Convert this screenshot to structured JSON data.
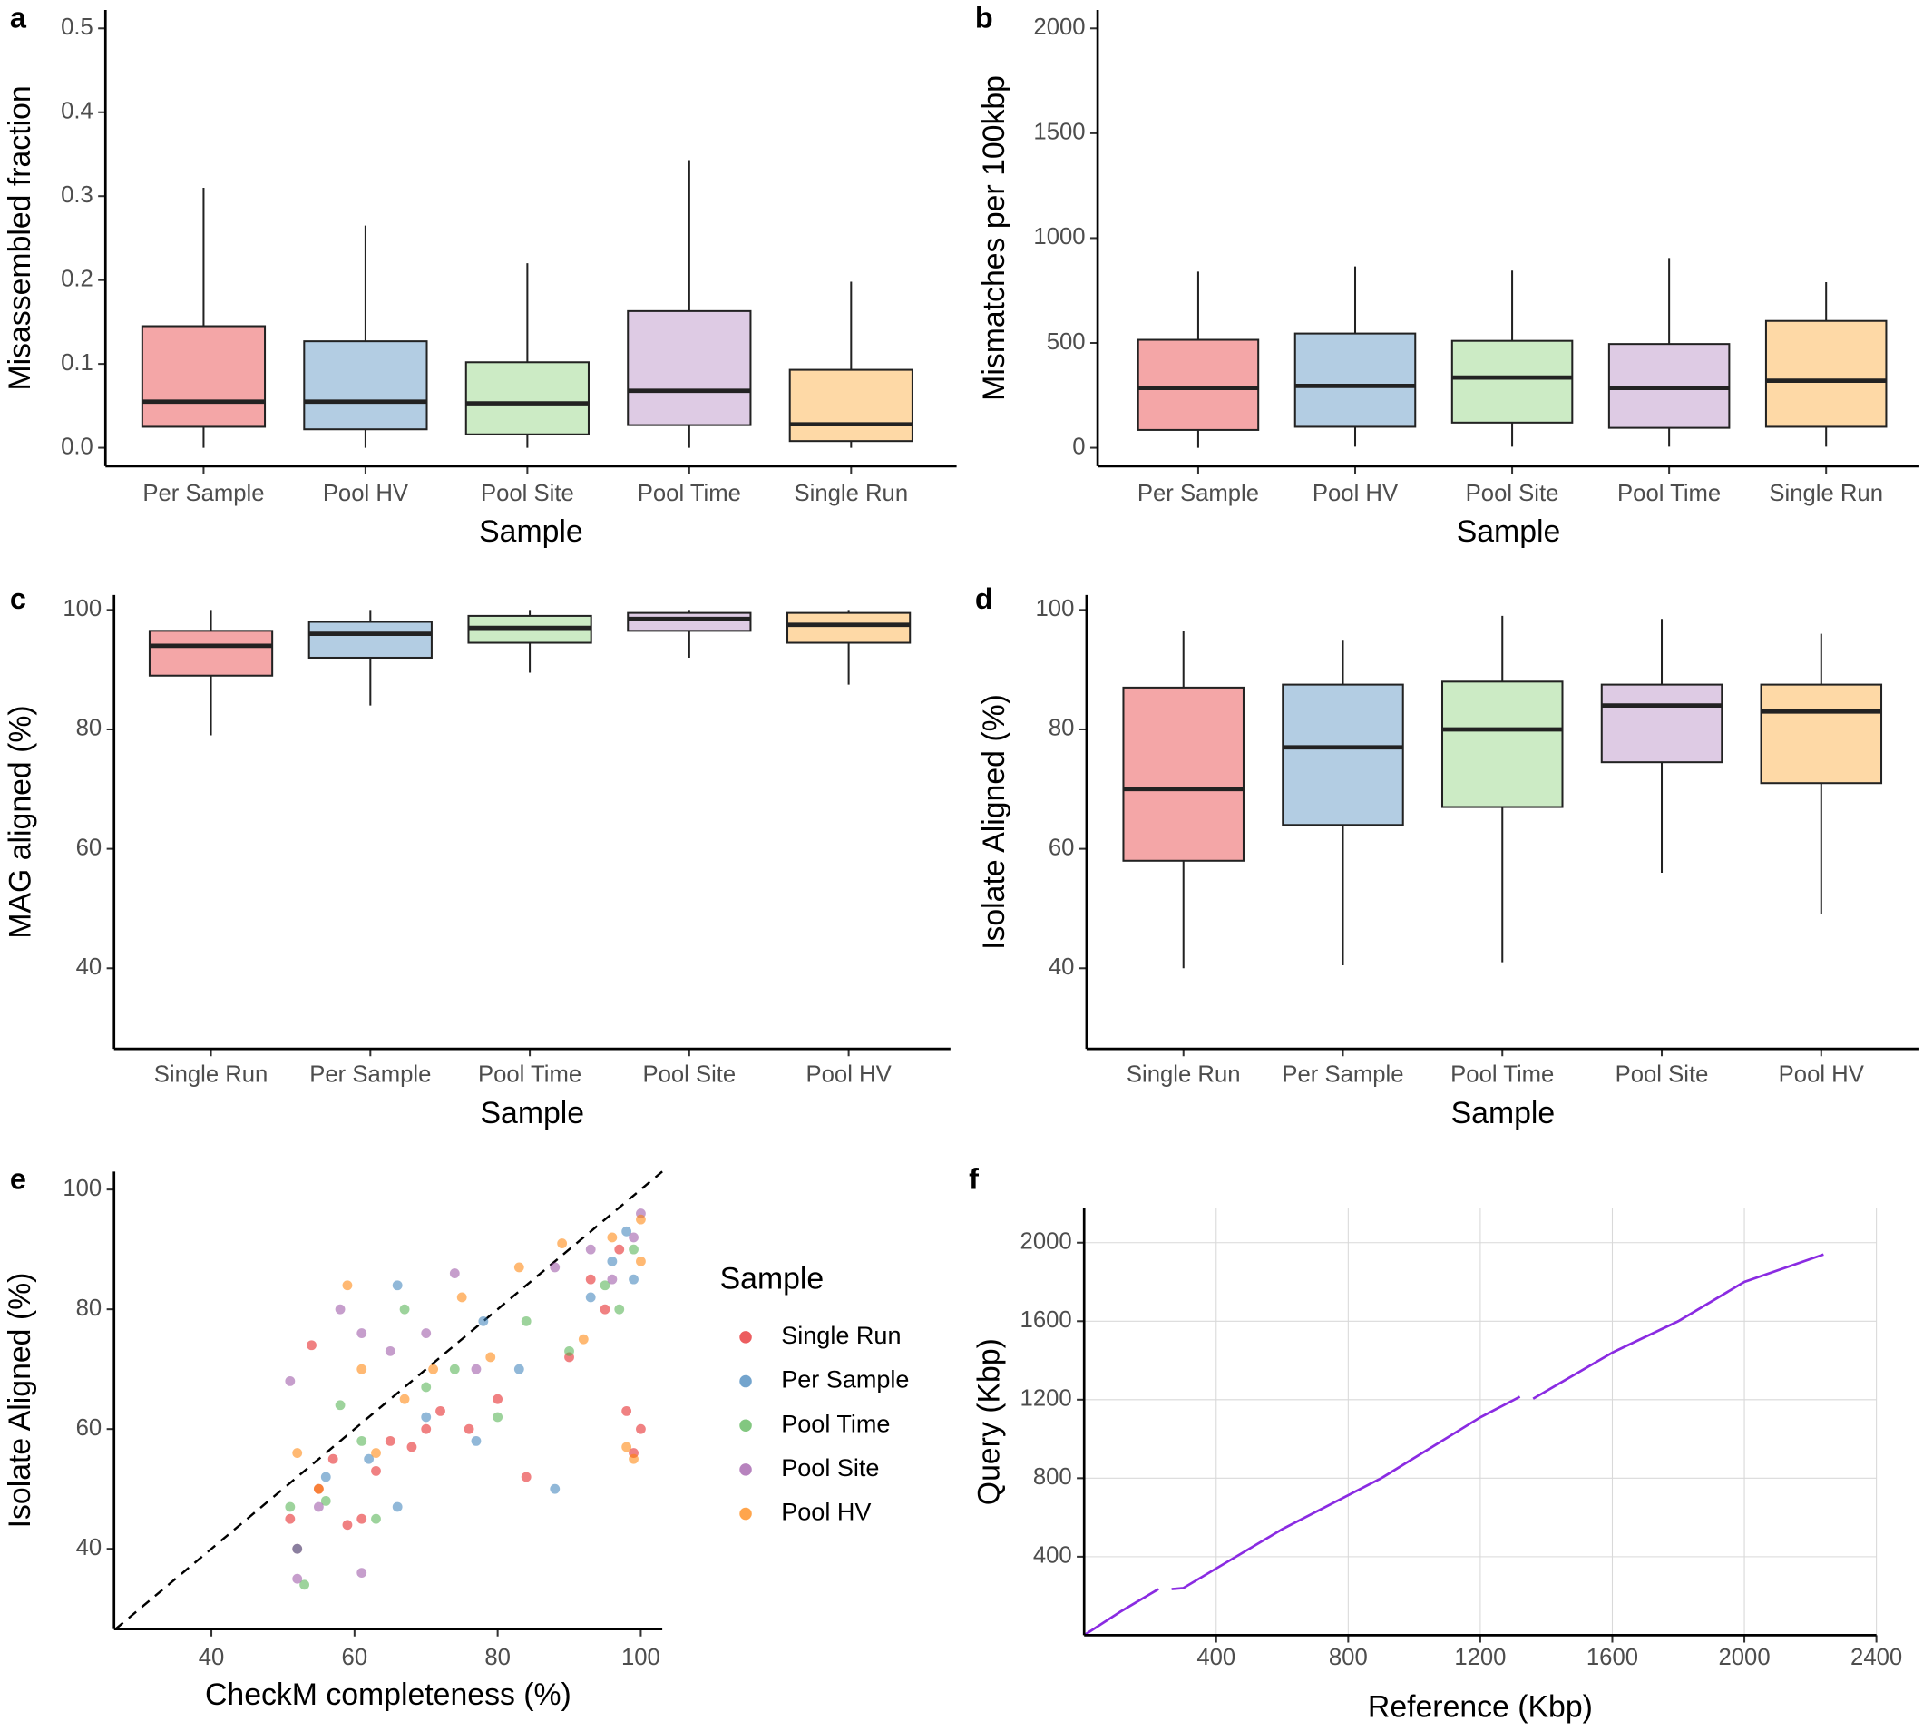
{
  "chart_data": [
    {
      "type": "box",
      "panel_label": "a",
      "xlabel": "Sample",
      "ylabel": "Misassembled fraction",
      "categories": [
        "Per Sample",
        "Pool HV",
        "Pool Site",
        "Pool Time",
        "Single Run"
      ],
      "colors": [
        "#f4a6a7",
        "#b3cde3",
        "#ccebc5",
        "#decbe4",
        "#fed9a6"
      ],
      "boxes": [
        {
          "min": 0,
          "q1": 0.025,
          "median": 0.055,
          "q3": 0.145,
          "max": 0.31
        },
        {
          "min": 0,
          "q1": 0.022,
          "median": 0.055,
          "q3": 0.127,
          "max": 0.265
        },
        {
          "min": 0,
          "q1": 0.016,
          "median": 0.053,
          "q3": 0.102,
          "max": 0.22
        },
        {
          "min": 0,
          "q1": 0.027,
          "median": 0.068,
          "q3": 0.163,
          "max": 0.343
        },
        {
          "min": 0,
          "q1": 0.008,
          "median": 0.028,
          "q3": 0.093,
          "max": 0.198
        }
      ],
      "ylim": [
        -0.022,
        0.522
      ],
      "yticks": [
        {
          "value": 0,
          "label": "0.0"
        },
        0.1,
        0.2,
        0.3,
        0.4,
        0.5
      ]
    },
    {
      "type": "box",
      "panel_label": "b",
      "xlabel": "Sample",
      "ylabel": "Mismatches per 100kbp",
      "categories": [
        "Per Sample",
        "Pool HV",
        "Pool Site",
        "Pool Time",
        "Single Run"
      ],
      "colors": [
        "#f4a6a7",
        "#b3cde3",
        "#ccebc5",
        "#decbe4",
        "#fed9a6"
      ],
      "boxes": [
        {
          "min": 0,
          "q1": 85,
          "median": 285,
          "q3": 515,
          "max": 840
        },
        {
          "min": 5,
          "q1": 100,
          "median": 295,
          "q3": 545,
          "max": 865
        },
        {
          "min": 5,
          "q1": 120,
          "median": 335,
          "q3": 510,
          "max": 845
        },
        {
          "min": 5,
          "q1": 95,
          "median": 285,
          "q3": 495,
          "max": 905
        },
        {
          "min": 5,
          "q1": 100,
          "median": 320,
          "q3": 605,
          "max": 790
        }
      ],
      "ylim": [
        -88,
        2088
      ],
      "yticks": [
        0,
        500,
        1000,
        1500,
        2000
      ]
    },
    {
      "type": "box",
      "panel_label": "c",
      "xlabel": "Sample",
      "ylabel": "MAG aligned (%)",
      "categories": [
        "Single Run",
        "Per Sample",
        "Pool Time",
        "Pool Site",
        "Pool HV"
      ],
      "colors": [
        "#f4a6a7",
        "#b3cde3",
        "#ccebc5",
        "#decbe4",
        "#fed9a6"
      ],
      "boxes": [
        {
          "min": 79,
          "q1": 89,
          "median": 94,
          "q3": 96.5,
          "max": 100
        },
        {
          "min": 84,
          "q1": 92,
          "median": 96,
          "q3": 98,
          "max": 100
        },
        {
          "min": 89.5,
          "q1": 94.5,
          "median": 97,
          "q3": 99,
          "max": 100
        },
        {
          "min": 92,
          "q1": 96.5,
          "median": 98.5,
          "q3": 99.5,
          "max": 100
        },
        {
          "min": 87.5,
          "q1": 94.5,
          "median": 97.5,
          "q3": 99.5,
          "max": 100
        }
      ],
      "ylim": [
        26.5,
        102.5
      ],
      "yticks": [
        40,
        60,
        80,
        100
      ]
    },
    {
      "type": "box",
      "panel_label": "d",
      "xlabel": "Sample",
      "ylabel": "Isolate Aligned (%)",
      "categories": [
        "Single Run",
        "Per Sample",
        "Pool Time",
        "Pool Site",
        "Pool HV"
      ],
      "colors": [
        "#f4a6a7",
        "#b3cde3",
        "#ccebc5",
        "#decbe4",
        "#fed9a6"
      ],
      "boxes": [
        {
          "min": 40,
          "q1": 58,
          "median": 70,
          "q3": 87,
          "max": 96.5
        },
        {
          "min": 40.5,
          "q1": 64,
          "median": 77,
          "q3": 87.5,
          "max": 95
        },
        {
          "min": 41,
          "q1": 67,
          "median": 80,
          "q3": 88,
          "max": 99
        },
        {
          "min": 56,
          "q1": 74.5,
          "median": 84,
          "q3": 87.5,
          "max": 98.5
        },
        {
          "min": 49,
          "q1": 71,
          "median": 83,
          "q3": 87.5,
          "max": 96
        }
      ],
      "ylim": [
        26.5,
        102.5
      ],
      "yticks": [
        40,
        60,
        80,
        100
      ]
    },
    {
      "type": "scatter",
      "panel_label": "e",
      "xlabel": "CheckM completeness (%)",
      "ylabel": "Isolate Aligned (%)",
      "legend_title": "Sample",
      "identity_line": true,
      "xlim": [
        26.4,
        103
      ],
      "ylim": [
        26.6,
        103
      ],
      "xticks": [
        40,
        60,
        80,
        100
      ],
      "yticks": [
        40,
        60,
        80,
        100
      ],
      "series": [
        {
          "name": "Single Run",
          "color": "#e41a1c",
          "x": [
            51,
            52,
            54,
            55,
            57,
            59,
            61,
            63,
            65,
            68,
            70,
            72,
            76,
            80,
            84,
            90,
            95,
            98,
            99,
            100,
            97,
            93
          ],
          "y": [
            45,
            40,
            74,
            50,
            55,
            44,
            45,
            53,
            58,
            57,
            60,
            63,
            60,
            65,
            52,
            72,
            80,
            63,
            56,
            60,
            90,
            85
          ]
        },
        {
          "name": "Per Sample",
          "color": "#377eb8",
          "x": [
            52,
            56,
            62,
            66,
            66,
            70,
            77,
            78,
            83,
            88,
            93,
            96,
            98,
            99
          ],
          "y": [
            40,
            52,
            55,
            84,
            47,
            62,
            58,
            78,
            70,
            50,
            82,
            88,
            93,
            85
          ]
        },
        {
          "name": "Pool Time",
          "color": "#4daf4a",
          "x": [
            51,
            53,
            56,
            58,
            61,
            63,
            67,
            70,
            74,
            80,
            84,
            90,
            95,
            97,
            99
          ],
          "y": [
            47,
            34,
            48,
            64,
            58,
            45,
            80,
            67,
            70,
            62,
            78,
            73,
            84,
            80,
            90
          ]
        },
        {
          "name": "Pool Site",
          "color": "#984ea3",
          "x": [
            51,
            52,
            55,
            58,
            61,
            61,
            65,
            70,
            74,
            77,
            88,
            93,
            96,
            99,
            100
          ],
          "y": [
            68,
            35,
            47,
            80,
            76,
            36,
            73,
            76,
            86,
            70,
            87,
            90,
            85,
            92,
            96
          ]
        },
        {
          "name": "Pool HV",
          "color": "#ff7f00",
          "x": [
            52,
            55,
            59,
            61,
            63,
            67,
            71,
            75,
            79,
            83,
            89,
            92,
            96,
            98,
            99,
            100,
            100
          ],
          "y": [
            56,
            50,
            84,
            70,
            56,
            65,
            70,
            82,
            72,
            87,
            91,
            75,
            92,
            57,
            55,
            88,
            95
          ]
        }
      ]
    },
    {
      "type": "line",
      "panel_label": "f",
      "xlabel": "Reference (Kbp)",
      "ylabel": "Query (Kbp)",
      "grid": true,
      "xlim": [
        0,
        2400
      ],
      "ylim": [
        0,
        2175
      ],
      "xticks": [
        400,
        800,
        1200,
        1600,
        2000,
        2400
      ],
      "yticks": [
        400,
        800,
        1200,
        1600,
        2000
      ],
      "series": [
        {
          "color": "#8a2be2",
          "x": [
            0,
            110,
            225,
            null,
            265,
            300,
            600,
            900,
            1200,
            1320,
            null,
            1360,
            1600,
            1800,
            2000,
            2240
          ],
          "y": [
            0,
            120,
            235,
            null,
            235,
            240,
            540,
            800,
            1110,
            1215,
            null,
            1205,
            1440,
            1600,
            1800,
            1940
          ]
        }
      ]
    }
  ]
}
